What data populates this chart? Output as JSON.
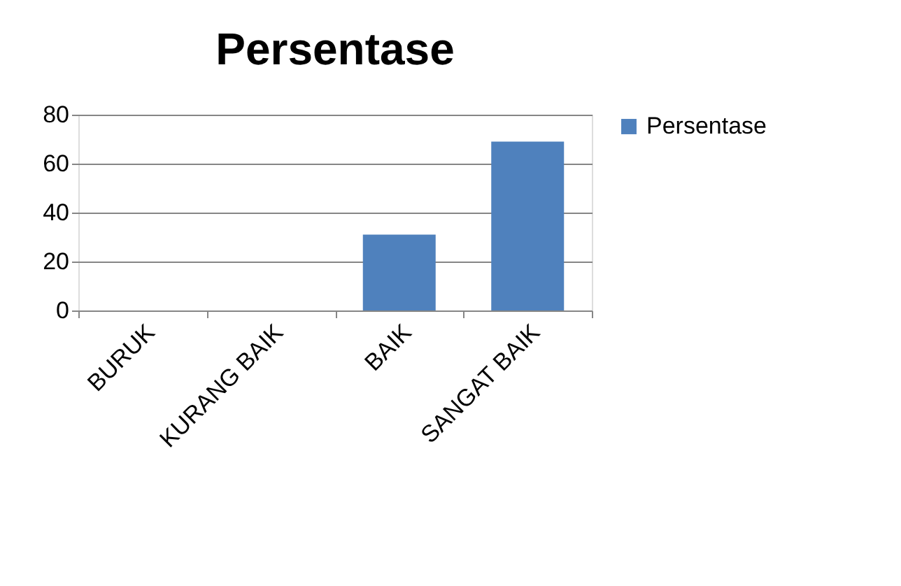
{
  "chart_data": {
    "type": "bar",
    "title": "Persentase",
    "categories": [
      "BURUK",
      "KURANG BAIK",
      "BAIK",
      "SANGAT BAIK"
    ],
    "series": [
      {
        "name": "Persentase",
        "color": "#4f81bd",
        "values": [
          0,
          0,
          31,
          69
        ]
      }
    ],
    "ylim": [
      0,
      80
    ],
    "yticks": [
      0,
      20,
      40,
      60,
      80
    ],
    "grid": "y",
    "legend": "right"
  }
}
